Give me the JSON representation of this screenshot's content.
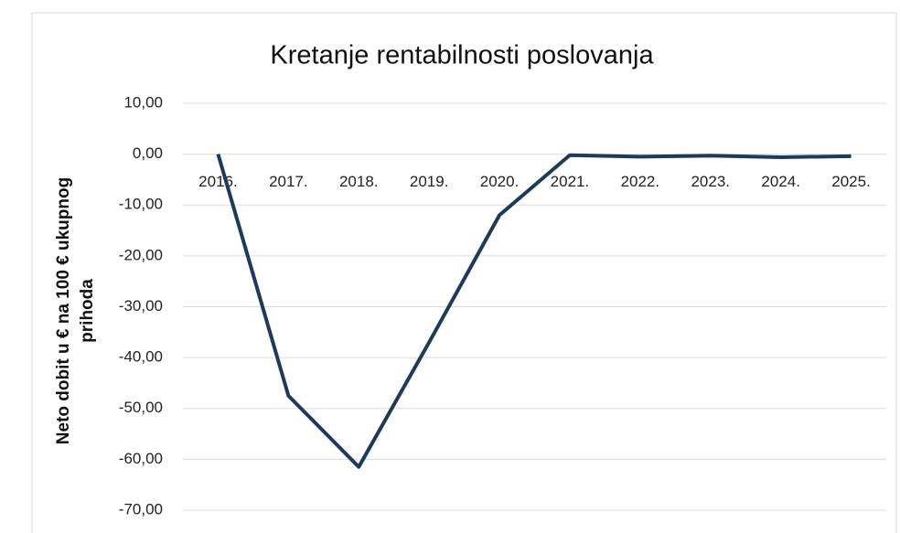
{
  "chart_data": {
    "type": "line",
    "title": "Kretanje rentabilnosti poslovanja",
    "y_label": [
      "Neto dobit u € na 100 € ukupnog",
      "prihoda"
    ],
    "categories": [
      "2016.",
      "2017.",
      "2018.",
      "2019.",
      "2020.",
      "2021.",
      "2022.",
      "2023.",
      "2024.",
      "2025."
    ],
    "series": [
      {
        "color": "#1b3a5c",
        "values": [
          0,
          -47.5,
          -61.5,
          -37,
          -12,
          -0.2,
          -0.5,
          -0.3,
          -0.6,
          -0.4
        ]
      }
    ],
    "ylim": [
      -70,
      10
    ],
    "yticks": [
      {
        "value": -70,
        "label": "-70,00"
      },
      {
        "value": -60,
        "label": "-60,00"
      },
      {
        "value": -50,
        "label": "-50,00"
      },
      {
        "value": -40,
        "label": "-40,00"
      },
      {
        "value": -30,
        "label": "-30,00"
      },
      {
        "value": -20,
        "label": "-20,00"
      },
      {
        "value": -10,
        "label": "-10,00"
      },
      {
        "value": 0,
        "label": "0,00"
      },
      {
        "value": 10,
        "label": "10,00"
      }
    ],
    "grid": true
  }
}
